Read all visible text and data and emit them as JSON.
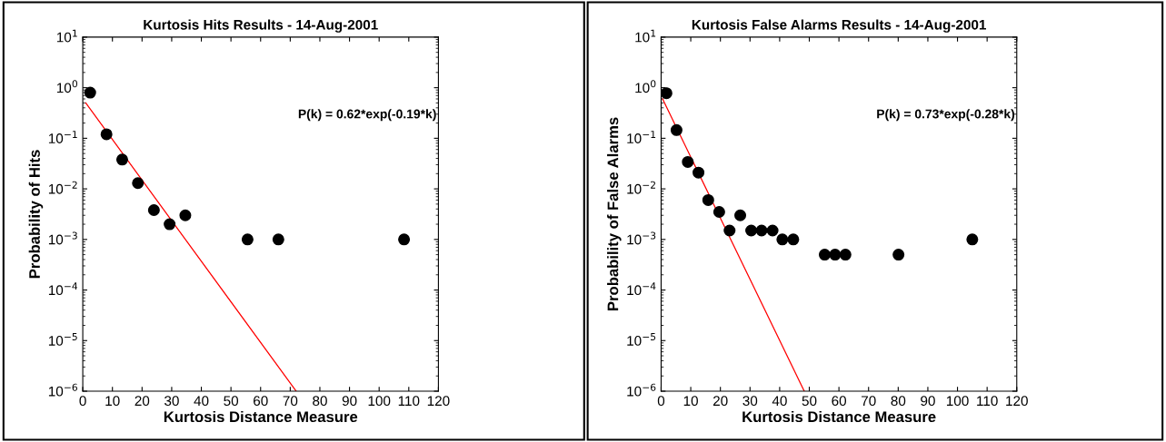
{
  "chart_data": [
    {
      "type": "scatter",
      "title": "Kurtosis Hits Results - 14-Aug-2001",
      "xlabel": "Kurtosis Distance Measure",
      "ylabel": "Probability of Hits",
      "log": "y",
      "marker": "circle",
      "grid": false,
      "legend": false,
      "xlim": [
        0,
        120
      ],
      "xticks": [
        0,
        10,
        20,
        30,
        40,
        50,
        60,
        70,
        80,
        90,
        100,
        110,
        120
      ],
      "ylim": [
        1e-06,
        10
      ],
      "yticks": [
        {
          "value": 1e-06,
          "label": "10$^{−6}$"
        },
        {
          "value": 1e-05,
          "label": "10$^{−5}$"
        },
        {
          "value": 0.0001,
          "label": "10$^{−4}$"
        },
        {
          "value": 0.001,
          "label": "10$^{−3}$"
        },
        {
          "value": 0.01,
          "label": "10$^{−2}$"
        },
        {
          "value": 0.1,
          "label": "10$^{−1}$"
        },
        {
          "value": 1,
          "label": "10$^{0}$"
        },
        {
          "value": 10,
          "label": "10$^{1}$"
        }
      ],
      "annotations": [
        "P(k) = 0.62*exp(-0.19*k)"
      ],
      "series": [
        {
          "color": "#000000",
          "x": [
            2.5,
            8,
            13.3,
            18.6,
            24,
            29.3,
            34.6,
            55.6,
            66,
            108.4
          ],
          "values": [
            0.8,
            0.12,
            0.038,
            0.013,
            0.0038,
            0.002,
            0.003,
            0.001,
            0.001,
            0.001
          ]
        },
        {
          "type": "line",
          "color": "#ff0000",
          "marker": "none",
          "line_style": "solid",
          "x": [
            1,
            72
          ],
          "values": [
            0.5,
            1e-06
          ]
        }
      ]
    },
    {
      "type": "scatter",
      "title": "Kurtosis False Alarms Results - 14-Aug-2001",
      "xlabel": "Kurtosis Distance Measure",
      "ylabel": "Probability of False Alarms",
      "log": "y",
      "marker": "circle",
      "grid": false,
      "legend": false,
      "xlim": [
        0,
        120
      ],
      "xticks": [
        0,
        10,
        20,
        30,
        40,
        50,
        60,
        70,
        80,
        90,
        100,
        110,
        120
      ],
      "ylim": [
        1e-06,
        10
      ],
      "yticks": [
        {
          "value": 1e-06,
          "label": "10$^{−6}$"
        },
        {
          "value": 1e-05,
          "label": "10$^{−5}$"
        },
        {
          "value": 0.0001,
          "label": "10$^{−4}$"
        },
        {
          "value": 0.001,
          "label": "10$^{−3}$"
        },
        {
          "value": 0.01,
          "label": "10$^{−2}$"
        },
        {
          "value": 0.1,
          "label": "10$^{−1}$"
        },
        {
          "value": 1,
          "label": "10$^{0}$"
        },
        {
          "value": 10,
          "label": "10$^{1}$"
        }
      ],
      "annotations": [
        "P(k) = 0.73*exp(-0.28*k)"
      ],
      "series": [
        {
          "color": "#000000",
          "x": [
            1.8,
            5.2,
            9,
            12.6,
            15.9,
            19.6,
            23.1,
            26.7,
            30.4,
            33.9,
            37.6,
            40.9,
            44.6,
            55.2,
            58.7,
            62.2,
            80.1,
            105
          ],
          "values": [
            0.78,
            0.145,
            0.034,
            0.021,
            0.006,
            0.0035,
            0.0015,
            0.003,
            0.0015,
            0.0015,
            0.0015,
            0.001,
            0.001,
            0.0005,
            0.0005,
            0.0005,
            0.0005,
            0.001
          ]
        },
        {
          "type": "line",
          "color": "#ff0000",
          "marker": "none",
          "line_style": "solid",
          "x": [
            0.5,
            48.3
          ],
          "values": [
            0.6,
            1e-06
          ]
        }
      ]
    }
  ]
}
